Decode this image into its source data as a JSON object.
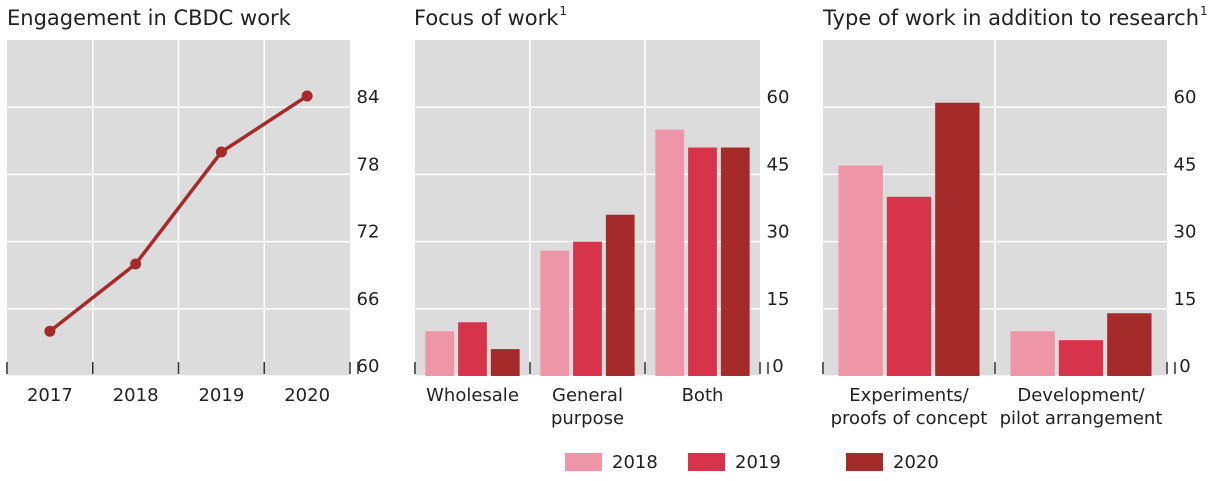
{
  "chart_data": [
    {
      "type": "line",
      "title": "Engagement in CBDC work",
      "title_superscript": "",
      "categories": [
        "2017",
        "2018",
        "2019",
        "2020"
      ],
      "series": [
        {
          "name": "Engagement",
          "values": [
            64.0,
            70.0,
            80.0,
            85.0
          ],
          "color": "#a52a2a"
        }
      ],
      "yticks": [
        60,
        66,
        72,
        78,
        84
      ],
      "ytick_labels": [
        "60",
        "66",
        "72",
        "78",
        "84"
      ],
      "ylim": [
        60,
        90
      ],
      "xlabel": "",
      "ylabel": "",
      "grid": true
    },
    {
      "type": "bar",
      "title": "Focus of work",
      "title_superscript": "1",
      "categories": [
        "Wholesale",
        "General purpose",
        "Both"
      ],
      "category_labels": [
        [
          "Wholesale"
        ],
        [
          "General",
          "purpose"
        ],
        [
          "Both"
        ]
      ],
      "series": [
        {
          "name": "2018",
          "values": [
            10,
            28,
            55
          ],
          "color": "#ef95a8"
        },
        {
          "name": "2019",
          "values": [
            12,
            30,
            51
          ],
          "color": "#d7334b"
        },
        {
          "name": "2020",
          "values": [
            6,
            36,
            51
          ],
          "color": "#a52a2a"
        }
      ],
      "yticks": [
        0,
        15,
        30,
        45,
        60
      ],
      "ytick_labels": [
        "0",
        "15",
        "30",
        "45",
        "60"
      ],
      "ylim": [
        0,
        75
      ],
      "xlabel": "",
      "ylabel": "",
      "grid": true
    },
    {
      "type": "bar",
      "title": "Type of work in addition to research",
      "title_superscript": "1",
      "categories": [
        "Experiments/ proofs of concept",
        "Development/ pilot arrangement"
      ],
      "category_labels": [
        [
          "Experiments/",
          "proofs of concept"
        ],
        [
          "Development/",
          "pilot arrangement"
        ]
      ],
      "series": [
        {
          "name": "2018",
          "values": [
            47,
            10
          ],
          "color": "#ef95a8"
        },
        {
          "name": "2019",
          "values": [
            40,
            8
          ],
          "color": "#d7334b"
        },
        {
          "name": "2020",
          "values": [
            61,
            14
          ],
          "color": "#a52a2a"
        }
      ],
      "yticks": [
        0,
        15,
        30,
        45,
        60
      ],
      "ytick_labels": [
        "0",
        "15",
        "30",
        "45",
        "60"
      ],
      "ylim": [
        0,
        75
      ],
      "xlabel": "",
      "ylabel": "",
      "grid": true
    }
  ],
  "legend": [
    {
      "label": "2018",
      "color": "#ef95a8"
    },
    {
      "label": "2019",
      "color": "#d7334b"
    },
    {
      "label": "2020",
      "color": "#a52a2a"
    }
  ]
}
